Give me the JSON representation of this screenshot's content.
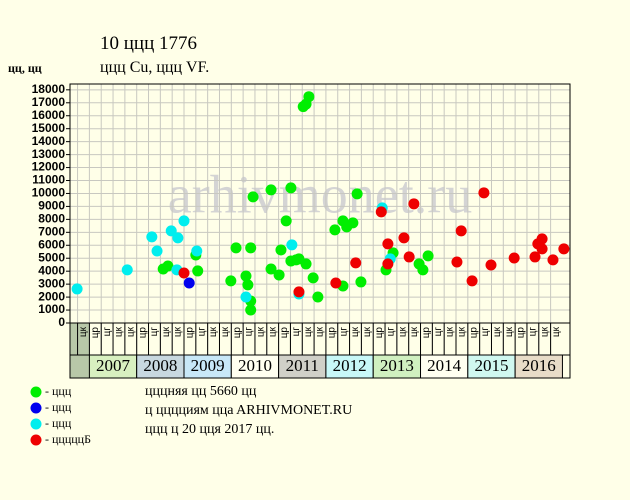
{
  "chart_data": {
    "type": "scatter",
    "title": "10 ццц 1776",
    "subtitle": "ццц Cu, ццц VF.",
    "y_label": "цц, цц",
    "watermark": "arhivmonet.ru",
    "notes": [
      "цццняя цц 5660 цц",
      "ц цццциям ццa ARHIVMONET.RU",
      "ццц ц 20 цця 2017 цц."
    ],
    "xlim": [
      2006.59,
      2017.16
    ],
    "ylim": [
      0,
      18450
    ],
    "yticks": [
      0,
      1000,
      2000,
      3000,
      4000,
      5000,
      6000,
      7000,
      8000,
      9000,
      10000,
      11000,
      12000,
      13000,
      14000,
      15000,
      16000,
      17000,
      18000
    ],
    "grid": true,
    "years": [
      {
        "value": 2007,
        "label": "2007",
        "color": "#d8f0c0"
      },
      {
        "value": 2008,
        "label": "2008",
        "color": "#c8d8e0"
      },
      {
        "value": 2009,
        "label": "2009",
        "color": "#c8e8f8"
      },
      {
        "value": 2010,
        "label": "2010",
        "color": "#fffff0"
      },
      {
        "value": 2011,
        "label": "2011",
        "color": "#d0d0c8"
      },
      {
        "value": 2012,
        "label": "2012",
        "color": "#c8f8f8"
      },
      {
        "value": 2013,
        "label": "2013",
        "color": "#d0f0c0"
      },
      {
        "value": 2014,
        "label": "2014",
        "color": "#fffff0"
      },
      {
        "value": 2015,
        "label": "2015",
        "color": "#d0f8f0"
      },
      {
        "value": 2016,
        "label": "2016",
        "color": "#e8dcc8"
      }
    ],
    "pre_color": "#b8c8a8",
    "xsubticks": [
      {
        "value": 2006.75,
        "label": "цк"
      },
      {
        "value": 2007,
        "label": "цр"
      },
      {
        "value": 2007.25,
        "label": "цг"
      },
      {
        "value": 2007.5,
        "label": "цк"
      },
      {
        "value": 2007.75,
        "label": "цк"
      },
      {
        "value": 2008,
        "label": "цр"
      },
      {
        "value": 2008.25,
        "label": "цг"
      },
      {
        "value": 2008.5,
        "label": "цк"
      },
      {
        "value": 2008.75,
        "label": "цк"
      },
      {
        "value": 2009,
        "label": "цр"
      },
      {
        "value": 2009.25,
        "label": "цг"
      },
      {
        "value": 2009.5,
        "label": "цк"
      },
      {
        "value": 2009.75,
        "label": "цк"
      },
      {
        "value": 2010,
        "label": "цр"
      },
      {
        "value": 2010.25,
        "label": "цг"
      },
      {
        "value": 2010.5,
        "label": "цк"
      },
      {
        "value": 2010.75,
        "label": "цк"
      },
      {
        "value": 2011,
        "label": "цр"
      },
      {
        "value": 2011.25,
        "label": "цг"
      },
      {
        "value": 2011.5,
        "label": "цк"
      },
      {
        "value": 2011.75,
        "label": "цк"
      },
      {
        "value": 2012,
        "label": "цр"
      },
      {
        "value": 2012.25,
        "label": "цг"
      },
      {
        "value": 2012.5,
        "label": "цк"
      },
      {
        "value": 2012.75,
        "label": "цк"
      },
      {
        "value": 2013,
        "label": "цр"
      },
      {
        "value": 2013.25,
        "label": "цг"
      },
      {
        "value": 2013.5,
        "label": "цк"
      },
      {
        "value": 2013.75,
        "label": "цк"
      },
      {
        "value": 2014,
        "label": "цр"
      },
      {
        "value": 2014.25,
        "label": "цг"
      },
      {
        "value": 2014.5,
        "label": "цк"
      },
      {
        "value": 2014.75,
        "label": "цк"
      },
      {
        "value": 2015,
        "label": "цр"
      },
      {
        "value": 2015.25,
        "label": "цг"
      },
      {
        "value": 2015.5,
        "label": "цк"
      },
      {
        "value": 2015.75,
        "label": "цк"
      },
      {
        "value": 2016,
        "label": "цр"
      },
      {
        "value": 2016.25,
        "label": "цг"
      },
      {
        "value": 2016.5,
        "label": "цк"
      },
      {
        "value": 2016.75,
        "label": "цк"
      }
    ],
    "series": [
      {
        "name": "- ццц",
        "color": "#00ee00",
        "x": [
          2008.56,
          2008.66,
          2009.25,
          2009.29,
          2010.1,
          2010.41,
          2010.46,
          2010.35,
          2010.41,
          2010.41,
          2009.99,
          2010.31,
          2010.84,
          2010.84,
          2011.01,
          2011.05,
          2011.16,
          2011.26,
          2011.26,
          2011.37,
          2011.43,
          2011.58,
          2011.52,
          2011.58,
          2011.64,
          2011.73,
          2011.83,
          2012.19,
          2012.36,
          2012.44,
          2012.57,
          2012.66,
          2012.74,
          2012.36,
          2013.27,
          2013.42,
          2013.97,
          2014.05,
          2014.16
        ],
        "values": [
          4170,
          4400,
          5250,
          4020,
          5800,
          5800,
          9740,
          2940,
          1700,
          1000,
          3250,
          3630,
          10280,
          4170,
          3710,
          5640,
          7880,
          10430,
          4790,
          4870,
          4950,
          4560,
          16700,
          16900,
          17470,
          3480,
          2010,
          7190,
          7880,
          7420,
          7730,
          9970,
          3170,
          2860,
          4100,
          5410,
          4560,
          4100,
          5180
        ]
      },
      {
        "name": "- ццц",
        "color": "#0000ee",
        "x": [
          2009.11
        ],
        "values": [
          3090
        ]
      },
      {
        "name": "- ццц",
        "color": "#00eeee",
        "x": [
          2006.74,
          2007.8,
          2008.32,
          2008.43,
          2008.73,
          2008.87,
          2008.85,
          2009.0,
          2009.27,
          2010.31,
          2011.28,
          2011.43,
          2013.19,
          2013.36
        ],
        "values": [
          2630,
          4100,
          6650,
          5560,
          7110,
          6570,
          4100,
          7880,
          5560,
          2010,
          6030,
          2240,
          8890,
          4950
        ]
      },
      {
        "name": "- цццццБ",
        "color": "#ee0000",
        "x": [
          2009.0,
          2011.43,
          2012.21,
          2012.63,
          2013.17,
          2013.31,
          2013.31,
          2013.65,
          2013.76,
          2013.86,
          2014.77,
          2014.86,
          2015.09,
          2015.34,
          2015.49,
          2015.98,
          2016.42,
          2016.48,
          2016.57,
          2016.57,
          2016.8,
          2017.03
        ],
        "values": [
          3860,
          2400,
          3090,
          4640,
          8580,
          6110,
          4560,
          6570,
          5100,
          9200,
          4710,
          7110,
          3250,
          10050,
          4480,
          5020,
          5100,
          6110,
          6490,
          5720,
          4870,
          5720
        ]
      }
    ]
  }
}
